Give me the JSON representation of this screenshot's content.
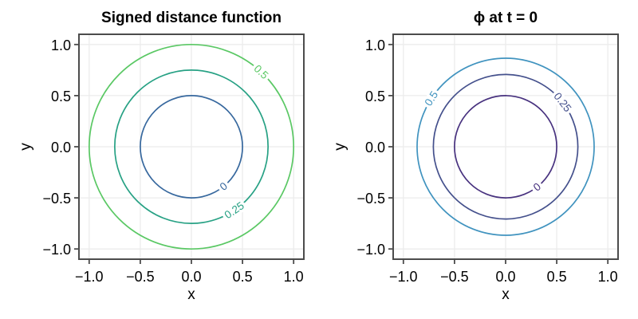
{
  "figure": {
    "background": "#ffffff",
    "axis_color": "#4c4c4c",
    "grid_color": "#ececec",
    "text_color": "#000000"
  },
  "chart_data": [
    {
      "type": "contour",
      "title": "Signed distance function",
      "xlabel": "x",
      "ylabel": "y",
      "xlim": [
        -1.1,
        1.1
      ],
      "ylim": [
        -1.1,
        1.1
      ],
      "grid": true,
      "xticks": [
        -1.0,
        -0.5,
        0.0,
        0.5,
        1.0
      ],
      "yticks": [
        -1.0,
        -0.5,
        0.0,
        0.5,
        1.0
      ],
      "xtick_labels": [
        "−1.0",
        "−0.5",
        "0.0",
        "0.5",
        "1.0"
      ],
      "ytick_labels": [
        "−1.0",
        "−0.5",
        "0.0",
        "0.5",
        "1.0"
      ],
      "center": [
        0,
        0
      ],
      "contours": [
        {
          "level": 0,
          "label": "0",
          "radius": 0.5,
          "color": "#37689e",
          "label_angle_deg": -51
        },
        {
          "level": 0.25,
          "label": "0.25",
          "radius": 0.75,
          "color": "#27a184",
          "label_angle_deg": -56
        },
        {
          "level": 0.5,
          "label": "0.5",
          "radius": 1.0,
          "color": "#5ac864",
          "label_angle_deg": 47
        }
      ]
    },
    {
      "type": "contour",
      "title": "ϕ at t = 0",
      "xlabel": "x",
      "ylabel": "y",
      "xlim": [
        -1.1,
        1.1
      ],
      "ylim": [
        -1.1,
        1.1
      ],
      "grid": true,
      "xticks": [
        -1.0,
        -0.5,
        0.0,
        0.5,
        1.0
      ],
      "yticks": [
        -1.0,
        -0.5,
        0.0,
        0.5,
        1.0
      ],
      "xtick_labels": [
        "−1.0",
        "−0.5",
        "0.0",
        "0.5",
        "1.0"
      ],
      "ytick_labels": [
        "−1.0",
        "−0.5",
        "0.0",
        "0.5",
        "1.0"
      ],
      "center": [
        0,
        0
      ],
      "contours": [
        {
          "level": 0,
          "label": "0",
          "radius": 0.5,
          "color": "#48327f",
          "label_angle_deg": -52
        },
        {
          "level": 0.25,
          "label": "0.25",
          "radius": 0.707,
          "color": "#44508c",
          "label_angle_deg": 38
        },
        {
          "level": 0.5,
          "label": "0.5",
          "radius": 0.866,
          "color": "#4093bf",
          "label_angle_deg": 147
        }
      ]
    }
  ]
}
